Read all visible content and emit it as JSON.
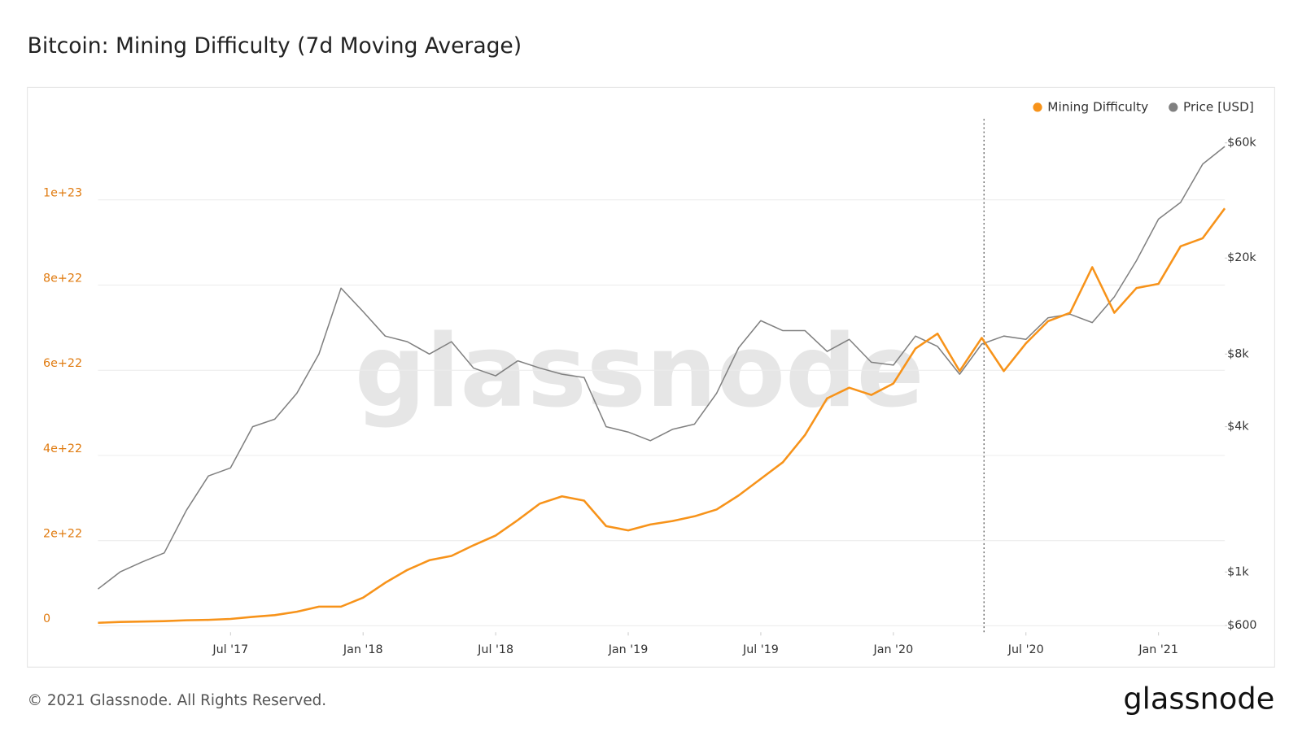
{
  "chart_data": {
    "type": "line",
    "title": "Bitcoin: Mining Difficulty (7d Moving Average)",
    "watermark": "glassnode",
    "footer": "© 2021 Glassnode. All Rights Reserved.",
    "logo": "glassnode",
    "legend": "top-right",
    "grid": true,
    "x": [
      "2017-01",
      "2017-02",
      "2017-03",
      "2017-04",
      "2017-05",
      "2017-06",
      "2017-07",
      "2017-08",
      "2017-09",
      "2017-10",
      "2017-11",
      "2017-12",
      "2018-01",
      "2018-02",
      "2018-03",
      "2018-04",
      "2018-05",
      "2018-06",
      "2018-07",
      "2018-08",
      "2018-09",
      "2018-10",
      "2018-11",
      "2018-12",
      "2019-01",
      "2019-02",
      "2019-03",
      "2019-04",
      "2019-05",
      "2019-06",
      "2019-07",
      "2019-08",
      "2019-09",
      "2019-10",
      "2019-11",
      "2019-12",
      "2020-01",
      "2020-02",
      "2020-03",
      "2020-04",
      "2020-05",
      "2020-06",
      "2020-07",
      "2020-08",
      "2020-09",
      "2020-10",
      "2020-11",
      "2020-12",
      "2021-01",
      "2021-02",
      "2021-03",
      "2021-04"
    ],
    "xlim": [
      "2017-01",
      "2021-04"
    ],
    "xticks": [
      {
        "value": "2017-07",
        "label": "Jul '17"
      },
      {
        "value": "2018-01",
        "label": "Jan '18"
      },
      {
        "value": "2018-07",
        "label": "Jul '18"
      },
      {
        "value": "2019-01",
        "label": "Jan '19"
      },
      {
        "value": "2019-07",
        "label": "Jul '19"
      },
      {
        "value": "2020-01",
        "label": "Jan '20"
      },
      {
        "value": "2020-07",
        "label": "Jul '20"
      },
      {
        "value": "2021-01",
        "label": "Jan '21"
      }
    ],
    "ylim": [
      -1.5e+21,
      1.19e+23
    ],
    "yticks": [
      0,
      {
        "value": 2e+22,
        "label": "2e+22"
      },
      {
        "value": 4e+22,
        "label": "4e+22"
      },
      {
        "value": 6e+22,
        "label": "6e+22"
      },
      {
        "value": 8e+22,
        "label": "8e+22"
      },
      {
        "value": 1e+23,
        "label": "1e+23"
      }
    ],
    "y2lim": [
      563,
      75400
    ],
    "y2log": true,
    "y2ticks": [
      {
        "value": 600,
        "label": "$600"
      },
      {
        "value": 1000,
        "label": "$1k"
      },
      {
        "value": 4000,
        "label": "$4k"
      },
      {
        "value": 8000,
        "label": "$8k"
      },
      {
        "value": 20000,
        "label": "$20k"
      },
      {
        "value": 60000,
        "label": "$60k"
      }
    ],
    "series": [
      {
        "name": "Mining Difficulty",
        "color": "#f7931a",
        "values": [
          7e+20,
          9e+20,
          1e+21,
          1.1e+21,
          1.3e+21,
          1.4e+21,
          1.6e+21,
          2.1e+21,
          2.5e+21,
          3.3e+21,
          4.5e+21,
          4.5e+21,
          6.6e+21,
          1.01e+22,
          1.31e+22,
          1.54e+22,
          1.64e+22,
          1.89e+22,
          2.12e+22,
          2.48e+22,
          2.87e+22,
          3.04e+22,
          2.94e+22,
          2.34e+22,
          2.24e+22,
          2.38e+22,
          2.46e+22,
          2.57e+22,
          2.73e+22,
          3.06e+22,
          3.45e+22,
          3.84e+22,
          4.48e+22,
          5.34e+22,
          5.59e+22,
          5.42e+22,
          5.69e+22,
          6.51e+22,
          6.86e+22,
          5.98e+22,
          6.76e+22,
          5.98e+22,
          6.63e+22,
          7.15e+22,
          7.35e+22,
          8.42e+22,
          7.35e+22,
          7.93e+22,
          8.03e+22,
          8.91e+22,
          9.1e+22,
          9.8e+22
        ]
      },
      {
        "name": "Price [USD]",
        "color": "#808080",
        "axis": "y2",
        "values": [
          850,
          1000,
          1100,
          1200,
          1800,
          2500,
          2700,
          4000,
          4300,
          5500,
          8000,
          15000,
          12000,
          9500,
          9000,
          8000,
          9000,
          7000,
          6500,
          7500,
          7000,
          6600,
          6400,
          4000,
          3800,
          3500,
          3900,
          4100,
          5500,
          8500,
          11000,
          10000,
          10000,
          8200,
          9200,
          7400,
          7200,
          9500,
          8600,
          6600,
          8800,
          9500,
          9200,
          11300,
          11700,
          10800,
          13800,
          19500,
          29000,
          34000,
          49000,
          58000
        ]
      }
    ]
  }
}
